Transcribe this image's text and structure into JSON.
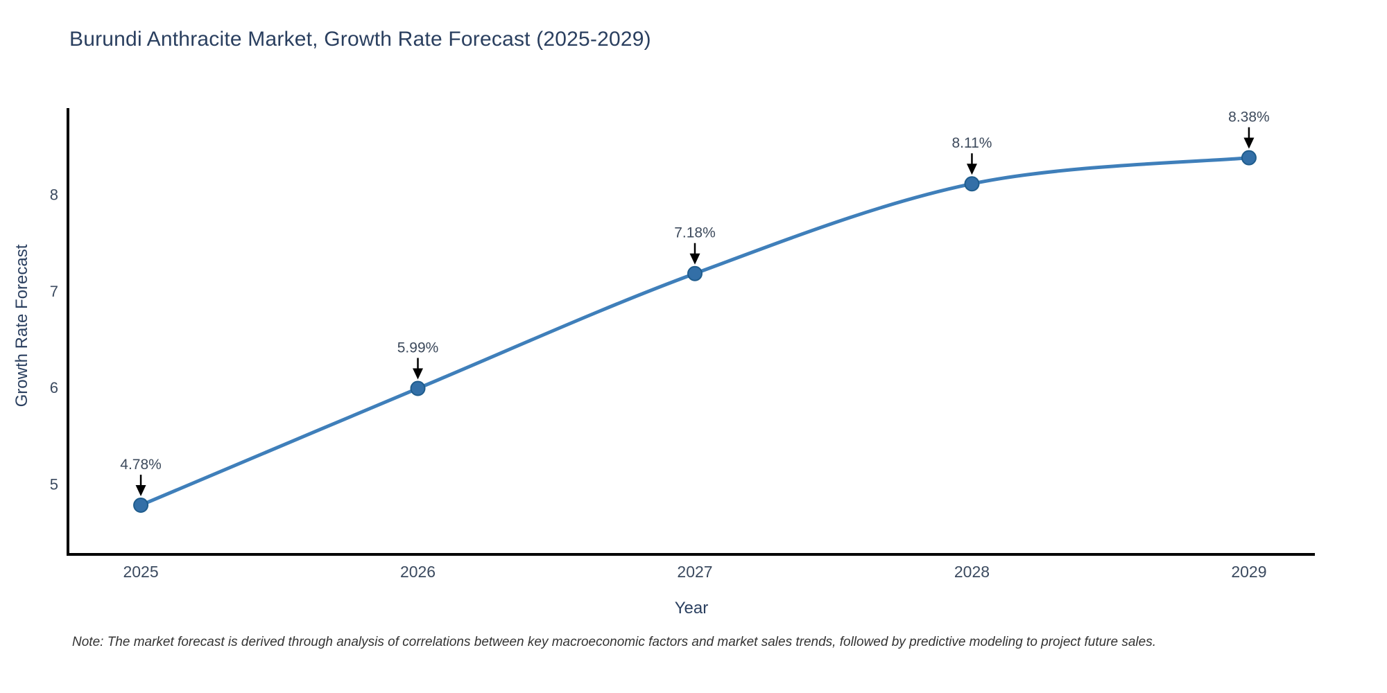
{
  "chart_data": {
    "type": "line",
    "title": "Burundi Anthracite Market, Growth Rate Forecast (2025-2029)",
    "xlabel": "Year",
    "ylabel": "Growth Rate Forecast",
    "categories": [
      2025,
      2026,
      2027,
      2028,
      2029
    ],
    "values": [
      4.78,
      5.99,
      7.18,
      8.11,
      8.38
    ],
    "point_labels": [
      "4.78%",
      "5.99%",
      "7.18%",
      "8.11%",
      "8.38%"
    ],
    "yticks": [
      5,
      6,
      7,
      8
    ],
    "xlim": [
      2024.737,
      2029.238
    ],
    "ylim": [
      4.27,
      8.88
    ],
    "grid": false,
    "legend": "none",
    "line_shape": "spline",
    "colors": {
      "line": "#3f7fba",
      "marker_fill": "#336fa7",
      "marker_border": "#1f5c8c",
      "axis_line": "#000000",
      "tick_text": "#3b4a5f",
      "annotation_text": "#3d4a5c",
      "arrow": "#000000",
      "title_text": "#2a3f5f"
    },
    "note": "Note: The market forecast is derived through analysis of correlations between key macroeconomic factors and market sales trends, followed by predictive modeling to project future sales."
  }
}
